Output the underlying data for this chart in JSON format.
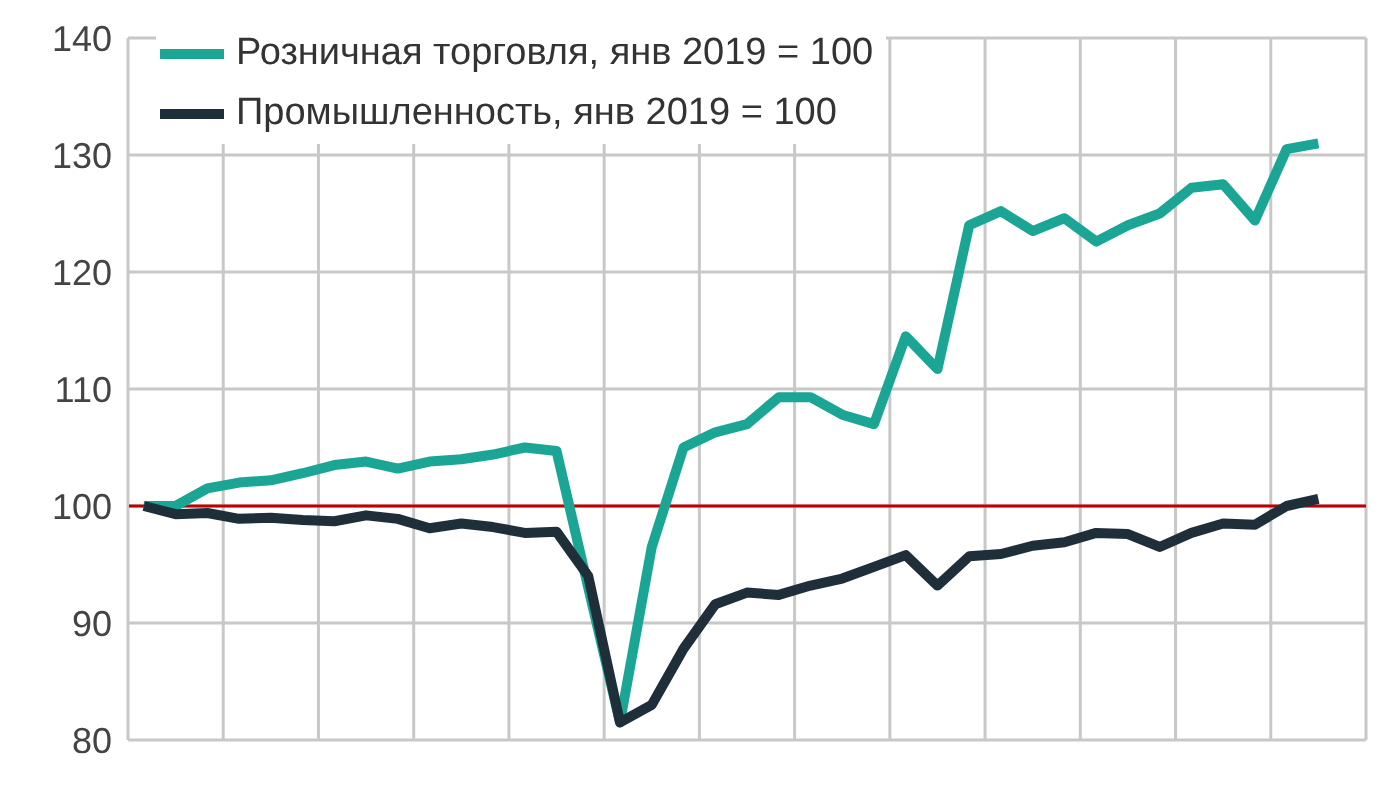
{
  "chart_data": {
    "type": "line",
    "categories": [
      null,
      null,
      null,
      null,
      null,
      null,
      null,
      null,
      null,
      null,
      null,
      null,
      null,
      null,
      null,
      null,
      null,
      null,
      null,
      null,
      null,
      null,
      null,
      null,
      null,
      null,
      null,
      null,
      null,
      null,
      null,
      null,
      null,
      null,
      null,
      null,
      null,
      null
    ],
    "series": [
      {
        "name": "Розничная торговля, янв 2019 = 100",
        "color": "#1aa595",
        "values": [
          100,
          100,
          101.5,
          102,
          102.2,
          102.8,
          103.5,
          103.8,
          103.2,
          103.8,
          104,
          104.4,
          105,
          104.7,
          93,
          81.5,
          96.5,
          105,
          106.3,
          107,
          109.3,
          109.3,
          107.8,
          107,
          114.5,
          111.7,
          124,
          125.2,
          123.5,
          124.6,
          122.6,
          124,
          125,
          127.2,
          127.5,
          124.4,
          130.5,
          131
        ]
      },
      {
        "name": "Промышленность, янв 2019 = 100",
        "color": "#1f2f3a",
        "values": [
          100,
          99.3,
          99.4,
          98.9,
          99,
          98.8,
          98.7,
          99.2,
          98.9,
          98.1,
          98.5,
          98.2,
          97.7,
          97.8,
          94,
          81.5,
          83,
          87.8,
          91.6,
          92.6,
          92.4,
          93.2,
          93.8,
          94.8,
          95.8,
          93.2,
          95.7,
          95.9,
          96.6,
          96.9,
          97.7,
          97.6,
          96.5,
          97.7,
          98.5,
          98.4,
          100,
          100.6
        ]
      }
    ],
    "ylim": [
      80,
      140
    ],
    "yticks": [
      80,
      90,
      100,
      110,
      120,
      130,
      140
    ],
    "ref_lines": [
      {
        "axis": "y",
        "value": 100,
        "color": "#c00000"
      }
    ],
    "grid": true,
    "legend": "top left",
    "tick_labels": "y",
    "marker": "none",
    "line_style": "solid"
  }
}
